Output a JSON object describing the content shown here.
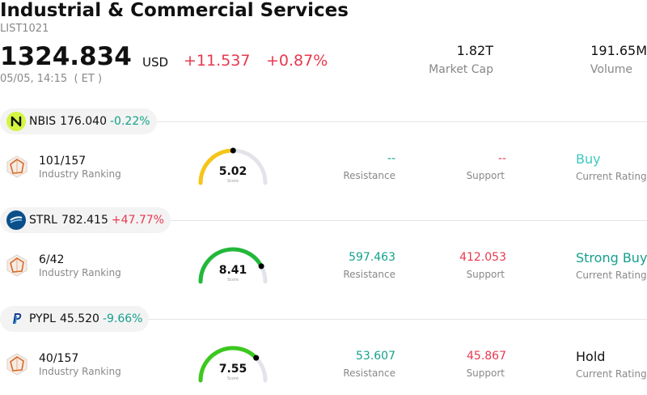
{
  "header": {
    "title": "Industrial & Commercial Services",
    "code": "LIST1021",
    "price": "1324.834",
    "currency": "USD",
    "change": "+11.537",
    "change_pct": "+0.87%",
    "time": "05/05, 14:15  ( ET )",
    "market_cap": {
      "value": "1.82T",
      "label": "Market Cap"
    },
    "volume": {
      "value": "191.65M",
      "label": "Volume"
    }
  },
  "colors": {
    "up": "#e8384f",
    "down": "#14a08c",
    "rating_teal": "#14a08c",
    "rating_light": "#3cc8c0"
  },
  "stocks": [
    {
      "ticker": "NBIS",
      "price": "176.040",
      "change": "-0.22%",
      "direction": "down",
      "logo_icon": "nbis-logo-icon",
      "rank": "101/157",
      "rank_label": "Industry Ranking",
      "score": "5.02",
      "score_value": 5.02,
      "score_label": "Score",
      "gauge_color": "#f5c518",
      "resistance": "--",
      "resistance_label": "Resistance",
      "support": "--",
      "support_label": "Support",
      "rating": "Buy",
      "rating_label": "Current Rating",
      "rating_color": "#3cc8c0"
    },
    {
      "ticker": "STRL",
      "price": "782.415",
      "change": "+47.77%",
      "direction": "up",
      "logo_icon": "strl-logo-icon",
      "rank": "6/42",
      "rank_label": "Industry Ranking",
      "score": "8.41",
      "score_value": 8.41,
      "score_label": "Score",
      "gauge_color": "#22b83a",
      "resistance": "597.463",
      "resistance_label": "Resistance",
      "support": "412.053",
      "support_label": "Support",
      "rating": "Strong Buy",
      "rating_label": "Current Rating",
      "rating_color": "#14a08c"
    },
    {
      "ticker": "PYPL",
      "price": "45.520",
      "change": "-9.66%",
      "direction": "down",
      "logo_icon": "pypl-logo-icon",
      "rank": "40/157",
      "rank_label": "Industry Ranking",
      "score": "7.55",
      "score_value": 7.55,
      "score_label": "Score",
      "gauge_color": "#3cc81e",
      "resistance": "53.607",
      "resistance_label": "Resistance",
      "support": "45.867",
      "support_label": "Support",
      "rating": "Hold",
      "rating_label": "Current Rating",
      "rating_color": "#111111"
    }
  ]
}
